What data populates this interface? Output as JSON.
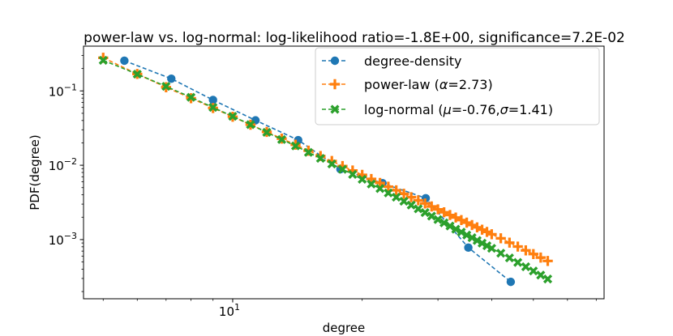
{
  "chart_data": {
    "type": "line",
    "scale": {
      "x": "log",
      "y": "log"
    },
    "title": "power-law vs. log-normal: log-likelihood ratio=-1.8E+00, significance=7.2E-02",
    "xlabel": "degree",
    "ylabel": "PDF(degree)",
    "xlim": [
      4.5,
      73
    ],
    "ylim": [
      0.00016,
      0.4
    ],
    "x_ticks": [
      {
        "value": 10,
        "base": "10",
        "exp": "1"
      }
    ],
    "y_ticks": [
      {
        "value": 0.1,
        "base": "10",
        "exp": "−1"
      },
      {
        "value": 0.01,
        "base": "10",
        "exp": "−2"
      },
      {
        "value": 0.001,
        "base": "10",
        "exp": "−3"
      }
    ],
    "legend": {
      "position": "top-right",
      "entries": [
        {
          "label": "degree-density",
          "text": "degree-density"
        },
        {
          "label": "power-law",
          "prefix": "power-law (",
          "sym": "α",
          "rest": "=2.73)"
        },
        {
          "label": "log-normal",
          "prefix": "log-normal (",
          "sym": "μ",
          "mid": "=-0.76,",
          "sym2": "σ",
          "rest": "=1.41)"
        }
      ]
    },
    "series": [
      {
        "name": "degree-density",
        "color": "#1f77b4",
        "marker": "circle",
        "x": [
          5.6,
          7.2,
          9.0,
          11.3,
          14.2,
          17.8,
          22.3,
          28.1,
          35.3,
          44.3
        ],
        "y": [
          0.255,
          0.146,
          0.0755,
          0.0402,
          0.0218,
          0.00885,
          0.00575,
          0.0036,
          0.00078,
          0.00027
        ]
      },
      {
        "name": "power-law",
        "color": "#ff7f0e",
        "marker": "plus",
        "x": [
          5,
          6,
          7,
          8,
          9,
          10,
          11,
          12,
          13,
          14,
          15,
          16,
          17,
          18,
          19,
          20,
          21,
          22,
          23,
          24,
          25,
          26,
          27,
          28,
          29,
          30,
          31,
          32,
          33,
          34,
          35,
          36,
          37,
          38,
          39,
          40,
          42,
          44,
          46,
          48,
          50,
          52,
          54
        ],
        "y": [
          0.279,
          0.169,
          0.112,
          0.0797,
          0.0589,
          0.0449,
          0.0351,
          0.0281,
          0.0228,
          0.0189,
          0.0157,
          0.0133,
          0.0114,
          0.00976,
          0.00849,
          0.00742,
          0.00654,
          0.00578,
          0.00515,
          0.0046,
          0.00413,
          0.00372,
          0.00337,
          0.00306,
          0.00279,
          0.00255,
          0.00233,
          0.00214,
          0.00198,
          0.00183,
          0.00169,
          0.00157,
          0.00146,
          0.00136,
          0.00127,
          0.00118,
          0.00104,
          0.00091,
          0.000806,
          0.000716,
          0.000639,
          0.000573,
          0.000516
        ]
      },
      {
        "name": "log-normal",
        "color": "#2ca02c",
        "marker": "x",
        "x": [
          5,
          6,
          7,
          8,
          9,
          10,
          11,
          12,
          13,
          14,
          15,
          16,
          17,
          18,
          19,
          20,
          21,
          22,
          23,
          24,
          25,
          26,
          27,
          28,
          29,
          30,
          31,
          32,
          33,
          34,
          35,
          36,
          37,
          38,
          39,
          40,
          42,
          44,
          46,
          48,
          50,
          52,
          54
        ],
        "y": [
          0.258,
          0.168,
          0.115,
          0.082,
          0.06,
          0.0455,
          0.0352,
          0.0277,
          0.0222,
          0.0182,
          0.0149,
          0.0124,
          0.0104,
          0.00882,
          0.00753,
          0.00647,
          0.00559,
          0.00486,
          0.00424,
          0.00372,
          0.00328,
          0.00291,
          0.00259,
          0.00231,
          0.00207,
          0.00186,
          0.00168,
          0.00152,
          0.00138,
          0.00126,
          0.00115,
          0.00106,
          0.000972,
          0.000895,
          0.000826,
          0.000763,
          0.000656,
          0.000567,
          0.000493,
          0.000431,
          0.000378,
          0.000333,
          0.000295
        ]
      }
    ]
  }
}
